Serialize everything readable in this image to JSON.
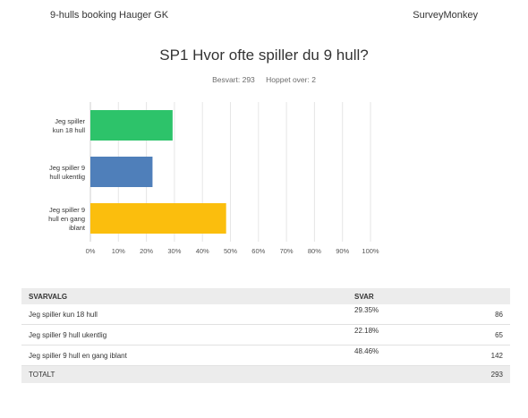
{
  "header": {
    "left": "9-hulls booking Hauger GK",
    "right": "SurveyMonkey"
  },
  "question": "SP1 Hvor ofte spiller du 9 hull?",
  "meta": {
    "answered": "Besvart: 293",
    "skipped": "Hoppet over: 2"
  },
  "chart_data": {
    "type": "bar",
    "orientation": "horizontal",
    "categories": [
      "Jeg spiller kun 18 hull",
      "Jeg spiller 9 hull ukentlig",
      "Jeg spiller 9 hull en gang iblant"
    ],
    "category_lines": [
      [
        "Jeg spiller",
        "kun 18 hull"
      ],
      [
        "Jeg spiller 9",
        "hull ukentlig"
      ],
      [
        "Jeg spiller 9",
        "hull en gang",
        "iblant"
      ]
    ],
    "values": [
      29.35,
      22.18,
      48.46
    ],
    "colors": [
      "#2dc36a",
      "#4f7fba",
      "#fbbe0d"
    ],
    "xlim": [
      0,
      100
    ],
    "xticks": [
      "0%",
      "10%",
      "20%",
      "30%",
      "40%",
      "50%",
      "60%",
      "70%",
      "80%",
      "90%",
      "100%"
    ],
    "grid": true
  },
  "table": {
    "headers": [
      "SVARVALG",
      "SVAR"
    ],
    "rows": [
      {
        "label": "Jeg spiller kun 18 hull",
        "percent": "29.35%",
        "count": "86"
      },
      {
        "label": "Jeg spiller 9 hull ukentlig",
        "percent": "22.18%",
        "count": "65"
      },
      {
        "label": "Jeg spiller 9 hull en gang iblant",
        "percent": "48.46%",
        "count": "142"
      }
    ],
    "total_label": "TOTALT",
    "total": "293"
  }
}
